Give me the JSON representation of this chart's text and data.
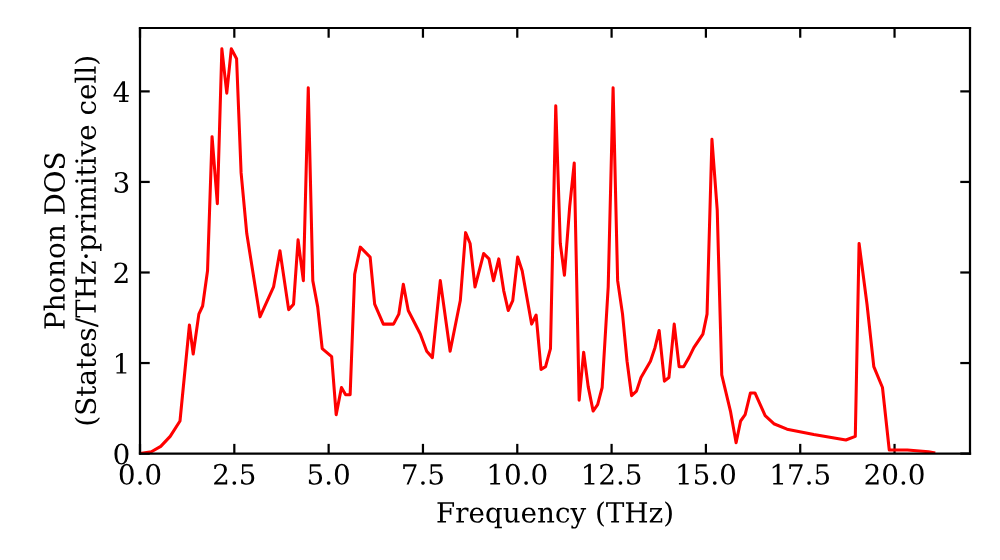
{
  "chart_data": {
    "type": "line",
    "xlabel": "Frequency (THz)",
    "ylabel": "Phonon DOS\n(States/THz·primitive cell)",
    "x": [
      0,
      0.3,
      0.55,
      0.8,
      1.06,
      1.31,
      1.41,
      1.56,
      1.66,
      1.79,
      1.91,
      2.05,
      2.17,
      2.3,
      2.42,
      2.56,
      2.68,
      2.83,
      3.18,
      3.54,
      3.71,
      3.94,
      4.07,
      4.19,
      4.33,
      4.46,
      4.58,
      4.71,
      4.83,
      5.08,
      5.2,
      5.34,
      5.45,
      5.57,
      5.69,
      5.84,
      6.1,
      6.22,
      6.45,
      6.72,
      6.86,
      6.98,
      7.11,
      7.43,
      7.6,
      7.75,
      7.96,
      8.22,
      8.49,
      8.63,
      8.75,
      8.88,
      9.11,
      9.25,
      9.37,
      9.51,
      9.64,
      9.76,
      9.88,
      10.01,
      10.13,
      10.38,
      10.5,
      10.63,
      10.75,
      10.88,
      11.02,
      11.14,
      11.25,
      11.39,
      11.51,
      11.64,
      11.76,
      11.88,
      12.01,
      12.13,
      12.25,
      12.41,
      12.54,
      12.66,
      12.79,
      12.91,
      13.03,
      13.16,
      13.28,
      13.53,
      13.65,
      13.76,
      13.9,
      14.02,
      14.16,
      14.29,
      14.41,
      14.55,
      14.68,
      14.92,
      15.03,
      15.16,
      15.3,
      15.42,
      15.65,
      15.8,
      15.92,
      16.04,
      16.18,
      16.3,
      16.57,
      16.8,
      17.15,
      17.86,
      18.71,
      18.96,
      19.06,
      19.27,
      19.45,
      19.68,
      19.86,
      20.34,
      20.9,
      21.04
    ],
    "series": [
      {
        "color": "#ff0000",
        "values": [
          0,
          0.02,
          0.08,
          0.19,
          0.36,
          1.42,
          1.1,
          1.54,
          1.63,
          2.02,
          3.5,
          2.76,
          4.47,
          3.98,
          4.47,
          4.36,
          3.1,
          2.43,
          1.51,
          1.84,
          2.24,
          1.59,
          1.65,
          2.36,
          1.91,
          4.04,
          1.91,
          1.62,
          1.16,
          1.07,
          0.43,
          0.73,
          0.65,
          0.65,
          1.98,
          2.28,
          2.17,
          1.65,
          1.43,
          1.43,
          1.54,
          1.87,
          1.58,
          1.32,
          1.13,
          1.06,
          1.91,
          1.13,
          1.69,
          2.44,
          2.32,
          1.84,
          2.21,
          2.15,
          1.91,
          2.15,
          1.8,
          1.58,
          1.69,
          2.17,
          2.02,
          1.43,
          1.53,
          0.93,
          0.96,
          1.16,
          3.84,
          2.32,
          1.97,
          2.73,
          3.21,
          0.59,
          1.12,
          0.74,
          0.47,
          0.54,
          0.73,
          1.84,
          4.04,
          1.91,
          1.54,
          1.02,
          0.64,
          0.69,
          0.84,
          1.02,
          1.17,
          1.36,
          0.8,
          0.84,
          1.43,
          0.96,
          0.96,
          1.06,
          1.17,
          1.32,
          1.54,
          3.47,
          2.69,
          0.87,
          0.47,
          0.12,
          0.36,
          0.43,
          0.67,
          0.67,
          0.42,
          0.33,
          0.27,
          0.21,
          0.15,
          0.19,
          2.32,
          1.65,
          0.96,
          0.73,
          0.04,
          0.04,
          0.02,
          0.01
        ]
      }
    ],
    "xlim": [
      0,
      22
    ],
    "ylim": [
      0,
      4.7
    ],
    "xticks": [
      {
        "value": 0,
        "label": "0.0"
      },
      {
        "value": 2.5,
        "label": "2.5"
      },
      {
        "value": 5,
        "label": "5.0"
      },
      {
        "value": 7.5,
        "label": "7.5"
      },
      {
        "value": 10,
        "label": "10.0"
      },
      {
        "value": 12.5,
        "label": "12.5"
      },
      {
        "value": 15,
        "label": "15.0"
      },
      {
        "value": 17.5,
        "label": "17.5"
      },
      {
        "value": 20,
        "label": "20.0"
      }
    ],
    "yticks": [
      0,
      1,
      2,
      3,
      4
    ],
    "grid": false,
    "legend": false,
    "marker": "none",
    "line_style": "solid"
  }
}
